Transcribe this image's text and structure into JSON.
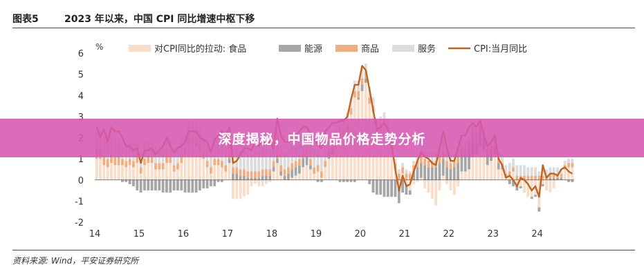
{
  "header": {
    "figure_no": "图表5",
    "title": "2023 年以来，中国 CPI 同比增速中枢下移"
  },
  "source": "资料来源: Wind，平安证券研究所",
  "banner": {
    "text": "深度揭秘，中国物品价格走势分析"
  },
  "chart_data": {
    "type": "bar",
    "ylabel": "%",
    "ylim": [
      -2,
      6
    ],
    "yticks": [
      -2,
      -1,
      0,
      1,
      2,
      3,
      4,
      5,
      6
    ],
    "x_tick_labels": [
      "14",
      "15",
      "16",
      "17",
      "18",
      "19",
      "20",
      "21",
      "22",
      "23",
      "24"
    ],
    "legend_position": "top",
    "colors": {
      "food": "#f8ddc8",
      "energy": "#a6a6a6",
      "goods": "#f2ad80",
      "services": "#dcdcdc",
      "cpi": "#c0631f"
    },
    "legend": {
      "food": "对CPI同比的拉动: 食品",
      "energy": "能源",
      "goods": "商品",
      "services": "服务",
      "cpi": "CPI:当月同比"
    },
    "x": [
      "2014-01",
      "2014-02",
      "2014-03",
      "2014-04",
      "2014-05",
      "2014-06",
      "2014-07",
      "2014-08",
      "2014-09",
      "2014-10",
      "2014-11",
      "2014-12",
      "2015-01",
      "2015-02",
      "2015-03",
      "2015-04",
      "2015-05",
      "2015-06",
      "2015-07",
      "2015-08",
      "2015-09",
      "2015-10",
      "2015-11",
      "2015-12",
      "2016-01",
      "2016-02",
      "2016-03",
      "2016-04",
      "2016-05",
      "2016-06",
      "2016-07",
      "2016-08",
      "2016-09",
      "2016-10",
      "2016-11",
      "2016-12",
      "2017-01",
      "2017-02",
      "2017-03",
      "2017-04",
      "2017-05",
      "2017-06",
      "2017-07",
      "2017-08",
      "2017-09",
      "2017-10",
      "2017-11",
      "2017-12",
      "2018-01",
      "2018-02",
      "2018-03",
      "2018-04",
      "2018-05",
      "2018-06",
      "2018-07",
      "2018-08",
      "2018-09",
      "2018-10",
      "2018-11",
      "2018-12",
      "2019-01",
      "2019-02",
      "2019-03",
      "2019-04",
      "2019-05",
      "2019-06",
      "2019-07",
      "2019-08",
      "2019-09",
      "2019-10",
      "2019-11",
      "2019-12",
      "2020-01",
      "2020-02",
      "2020-03",
      "2020-04",
      "2020-05",
      "2020-06",
      "2020-07",
      "2020-08",
      "2020-09",
      "2020-10",
      "2020-11",
      "2020-12",
      "2021-01",
      "2021-02",
      "2021-03",
      "2021-04",
      "2021-05",
      "2021-06",
      "2021-07",
      "2021-08",
      "2021-09",
      "2021-10",
      "2021-11",
      "2021-12",
      "2022-01",
      "2022-02",
      "2022-03",
      "2022-04",
      "2022-05",
      "2022-06",
      "2022-07",
      "2022-08",
      "2022-09",
      "2022-10",
      "2022-11",
      "2022-12",
      "2023-01",
      "2023-02",
      "2023-03",
      "2023-04",
      "2023-05",
      "2023-06",
      "2023-07",
      "2023-08",
      "2023-09",
      "2023-10",
      "2023-11",
      "2023-12",
      "2024-01",
      "2024-02",
      "2024-03",
      "2024-04",
      "2024-05",
      "2024-06",
      "2024-07",
      "2024-08",
      "2024-09",
      "2024-10"
    ],
    "series": [
      {
        "name": "对CPI同比的拉动: 食品",
        "key": "food",
        "kind": "bar",
        "values": [
          1.0,
          1.0,
          0.7,
          0.6,
          0.8,
          0.7,
          0.7,
          0.7,
          0.6,
          0.7,
          0.6,
          0.8,
          0.3,
          0.7,
          0.8,
          0.8,
          0.5,
          0.5,
          0.5,
          0.8,
          0.8,
          0.4,
          0.5,
          0.8,
          1.2,
          1.7,
          1.7,
          1.6,
          1.4,
          1.0,
          0.6,
          0.3,
          0.7,
          0.7,
          0.6,
          0.4,
          0.8,
          -0.9,
          -0.9,
          -0.9,
          -0.8,
          -0.7,
          -0.3,
          -0.2,
          -0.3,
          -0.3,
          -0.2,
          -0.1,
          0.4,
          0.8,
          0.2,
          0.0,
          0.0,
          0.1,
          0.2,
          0.3,
          0.6,
          0.7,
          0.5,
          0.3,
          0.4,
          0.1,
          0.6,
          1.0,
          1.2,
          1.5,
          1.9,
          2.0,
          2.3,
          3.1,
          3.9,
          3.8,
          4.2,
          4.6,
          3.6,
          3.2,
          2.2,
          2.3,
          2.6,
          2.3,
          1.5,
          0.5,
          -0.4,
          0.3,
          -0.2,
          -0.5,
          -0.2,
          -0.1,
          0.1,
          -0.4,
          -0.6,
          -0.9,
          -1.2,
          -0.5,
          0.2,
          -0.2,
          -0.5,
          -0.7,
          -0.3,
          0.4,
          0.4,
          0.5,
          1.1,
          1.2,
          1.6,
          1.4,
          0.7,
          0.9,
          1.2,
          0.5,
          0.5,
          0.1,
          0.2,
          0.4,
          -0.2,
          -0.3,
          -0.6,
          -0.8,
          -0.8,
          -0.7,
          -1.3,
          -0.2,
          -0.5,
          -0.6,
          -0.4,
          0.0,
          0.0,
          0.5,
          0.6,
          0.6
        ]
      },
      {
        "name": "能源",
        "key": "energy",
        "kind": "bar",
        "values": [
          0.0,
          0.0,
          0.0,
          0.0,
          0.0,
          0.0,
          0.0,
          -0.1,
          -0.1,
          -0.2,
          -0.3,
          -0.5,
          -0.6,
          -0.5,
          -0.5,
          -0.5,
          -0.5,
          -0.5,
          -0.6,
          -0.6,
          -0.6,
          -0.5,
          -0.5,
          -0.5,
          -0.6,
          -0.6,
          -0.6,
          -0.6,
          -0.5,
          -0.4,
          -0.4,
          -0.3,
          -0.3,
          -0.1,
          -0.1,
          0.0,
          0.2,
          0.3,
          0.3,
          0.2,
          0.2,
          0.1,
          0.1,
          0.1,
          0.1,
          0.2,
          0.2,
          0.2,
          0.2,
          0.2,
          0.2,
          0.2,
          0.3,
          0.4,
          0.4,
          0.4,
          0.4,
          0.4,
          0.2,
          0.0,
          -0.1,
          -0.1,
          0.0,
          0.1,
          0.1,
          0.0,
          -0.1,
          -0.1,
          -0.1,
          -0.1,
          -0.1,
          0.1,
          0.3,
          0.2,
          -0.2,
          -0.6,
          -0.7,
          -0.7,
          -0.8,
          -0.8,
          -0.8,
          -0.8,
          -0.7,
          -0.6,
          -0.5,
          -0.2,
          0.4,
          0.6,
          0.7,
          0.7,
          0.6,
          0.6,
          0.6,
          0.8,
          0.8,
          0.6,
          0.5,
          0.6,
          0.8,
          0.8,
          0.8,
          1.0,
          0.9,
          0.7,
          0.7,
          0.6,
          0.5,
          0.4,
          0.4,
          0.3,
          0.1,
          0.0,
          -0.2,
          -0.3,
          -0.3,
          -0.1,
          0.0,
          0.0,
          -0.1,
          -0.1,
          -0.2,
          -0.1,
          0.0,
          0.1,
          0.1,
          0.1,
          0.1,
          0.0,
          -0.1,
          -0.1
        ]
      },
      {
        "name": "商品",
        "key": "goods",
        "kind": "bar",
        "values": [
          0.5,
          0.5,
          0.4,
          0.4,
          0.4,
          0.4,
          0.4,
          0.3,
          0.3,
          0.3,
          0.3,
          0.3,
          0.3,
          0.3,
          0.3,
          0.3,
          0.3,
          0.3,
          0.3,
          0.3,
          0.3,
          0.3,
          0.3,
          0.3,
          0.3,
          0.3,
          0.3,
          0.3,
          0.3,
          0.3,
          0.3,
          0.3,
          0.3,
          0.3,
          0.3,
          0.3,
          0.3,
          0.3,
          0.3,
          0.3,
          0.3,
          0.3,
          0.3,
          0.3,
          0.3,
          0.3,
          0.3,
          0.3,
          0.3,
          0.3,
          0.3,
          0.3,
          0.3,
          0.3,
          0.3,
          0.3,
          0.3,
          0.3,
          0.3,
          0.3,
          0.3,
          0.3,
          0.3,
          0.3,
          0.3,
          0.3,
          0.3,
          0.3,
          0.3,
          0.3,
          0.3,
          0.3,
          0.3,
          0.3,
          0.3,
          0.3,
          0.3,
          0.3,
          0.3,
          0.3,
          0.3,
          0.3,
          0.3,
          0.3,
          0.3,
          0.3,
          0.3,
          0.3,
          0.3,
          0.3,
          0.3,
          0.3,
          0.3,
          0.3,
          0.3,
          0.3,
          0.3,
          0.3,
          0.3,
          0.3,
          0.3,
          0.3,
          0.3,
          0.3,
          0.3,
          0.3,
          0.3,
          0.3,
          0.3,
          0.2,
          0.2,
          0.2,
          0.2,
          0.2,
          0.2,
          0.2,
          0.2,
          0.2,
          0.2,
          0.2,
          0.2,
          0.2,
          0.2,
          0.2,
          0.2,
          0.2,
          0.2,
          0.2,
          0.2,
          0.2
        ]
      },
      {
        "name": "服务",
        "key": "services",
        "kind": "bar",
        "values": [
          1.0,
          0.9,
          0.9,
          0.8,
          0.9,
          0.9,
          0.9,
          0.8,
          0.8,
          0.8,
          0.8,
          0.7,
          0.7,
          0.8,
          0.7,
          0.7,
          0.8,
          0.8,
          0.8,
          0.8,
          0.8,
          0.8,
          0.8,
          0.8,
          0.7,
          0.8,
          0.8,
          0.8,
          0.7,
          0.7,
          0.7,
          0.7,
          0.7,
          0.8,
          0.8,
          0.8,
          0.9,
          0.9,
          0.9,
          0.9,
          0.9,
          0.9,
          0.9,
          1.0,
          1.0,
          1.0,
          1.0,
          1.0,
          0.8,
          0.9,
          0.8,
          0.8,
          0.8,
          0.8,
          0.8,
          0.8,
          0.8,
          0.8,
          0.8,
          0.8,
          0.7,
          0.7,
          0.7,
          0.7,
          0.7,
          0.6,
          0.6,
          0.6,
          0.6,
          0.5,
          0.5,
          0.5,
          0.5,
          0.4,
          0.5,
          0.4,
          0.4,
          0.4,
          0.3,
          0.3,
          0.3,
          0.2,
          0.2,
          0.2,
          0.2,
          0.1,
          0.2,
          0.3,
          0.4,
          0.4,
          0.4,
          0.4,
          0.4,
          0.4,
          0.5,
          0.4,
          0.3,
          0.3,
          0.3,
          0.3,
          0.3,
          0.3,
          0.3,
          0.2,
          0.2,
          0.2,
          0.2,
          0.2,
          0.3,
          0.4,
          0.4,
          0.4,
          0.4,
          0.4,
          0.5,
          0.5,
          0.5,
          0.4,
          0.4,
          0.4,
          0.2,
          0.4,
          0.3,
          0.3,
          0.3,
          0.3,
          0.2,
          0.2,
          0.2,
          0.2
        ]
      },
      {
        "name": "CPI:当月同比",
        "key": "cpi",
        "kind": "line",
        "values": [
          2.5,
          2.0,
          2.4,
          1.8,
          2.5,
          2.3,
          2.3,
          2.0,
          1.6,
          1.6,
          1.4,
          1.5,
          0.8,
          1.4,
          1.4,
          1.5,
          1.2,
          1.4,
          1.6,
          2.0,
          1.6,
          1.3,
          1.5,
          1.6,
          1.8,
          2.3,
          2.3,
          2.3,
          2.0,
          1.9,
          1.8,
          1.3,
          1.9,
          2.1,
          2.3,
          2.1,
          2.5,
          0.8,
          0.9,
          1.2,
          1.5,
          1.5,
          1.4,
          1.8,
          1.6,
          1.9,
          1.7,
          1.8,
          1.5,
          2.9,
          2.1,
          1.8,
          1.8,
          1.9,
          2.1,
          2.3,
          2.5,
          2.5,
          2.2,
          1.9,
          1.7,
          1.5,
          2.3,
          2.5,
          2.7,
          2.7,
          2.8,
          2.8,
          3.0,
          3.8,
          4.5,
          4.5,
          5.4,
          5.2,
          4.3,
          3.3,
          2.4,
          2.5,
          2.7,
          2.4,
          1.7,
          0.5,
          -0.5,
          0.2,
          -0.3,
          -0.2,
          0.4,
          0.9,
          1.3,
          1.1,
          1.0,
          0.8,
          0.7,
          1.5,
          2.3,
          1.5,
          0.9,
          0.9,
          1.5,
          2.1,
          2.1,
          2.5,
          2.7,
          2.5,
          2.8,
          2.1,
          1.6,
          1.8,
          2.1,
          1.0,
          0.7,
          0.1,
          0.2,
          0.0,
          -0.3,
          0.1,
          0.0,
          -0.2,
          -0.5,
          -0.3,
          -0.8,
          0.7,
          0.1,
          0.3,
          0.3,
          0.2,
          0.5,
          0.6,
          0.4,
          0.3
        ]
      }
    ]
  }
}
